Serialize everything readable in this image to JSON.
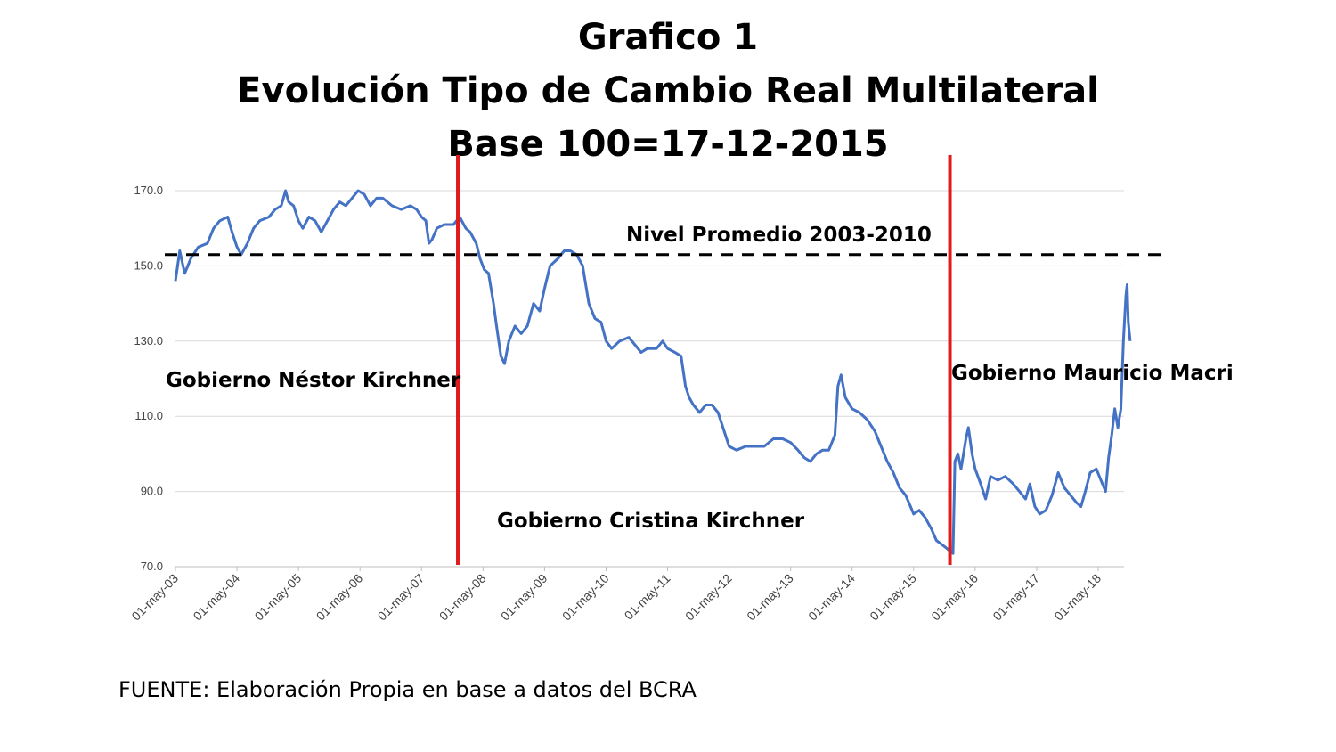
{
  "chart_data": {
    "type": "line",
    "title_lines": [
      "Grafico 1",
      "Evolución Tipo de Cambio Real Multilateral",
      "Base 100=17-12-2015"
    ],
    "xlabel": "",
    "ylabel": "",
    "ylim": [
      70,
      170
    ],
    "yticks": [
      "70.0",
      "90.0",
      "110.0",
      "130.0",
      "150.0",
      "170.0"
    ],
    "xlim": [
      2003.33,
      2018.75
    ],
    "xticks": [
      {
        "label": "01-may-03",
        "x": 2003.33
      },
      {
        "label": "01-may-04",
        "x": 2004.33
      },
      {
        "label": "01-may-05",
        "x": 2005.33
      },
      {
        "label": "01-may-06",
        "x": 2006.33
      },
      {
        "label": "01-may-07",
        "x": 2007.33
      },
      {
        "label": "01-may-08",
        "x": 2008.33
      },
      {
        "label": "01-may-09",
        "x": 2009.33
      },
      {
        "label": "01-may-10",
        "x": 2010.33
      },
      {
        "label": "01-may-11",
        "x": 2011.33
      },
      {
        "label": "01-may-12",
        "x": 2012.33
      },
      {
        "label": "01-may-13",
        "x": 2013.33
      },
      {
        "label": "01-may-14",
        "x": 2014.33
      },
      {
        "label": "01-may-15",
        "x": 2015.33
      },
      {
        "label": "01-may-16",
        "x": 2016.33
      },
      {
        "label": "01-may-17",
        "x": 2017.33
      },
      {
        "label": "01-may-18",
        "x": 2018.33
      }
    ],
    "grid": true,
    "series": [
      {
        "color": "#4472c4",
        "points": [
          [
            2003.33,
            146
          ],
          [
            2003.4,
            154
          ],
          [
            2003.48,
            148
          ],
          [
            2003.58,
            152
          ],
          [
            2003.7,
            155
          ],
          [
            2003.85,
            156
          ],
          [
            2003.95,
            160
          ],
          [
            2004.05,
            162
          ],
          [
            2004.18,
            163
          ],
          [
            2004.25,
            159
          ],
          [
            2004.33,
            155
          ],
          [
            2004.4,
            153
          ],
          [
            2004.5,
            156
          ],
          [
            2004.6,
            160
          ],
          [
            2004.7,
            162
          ],
          [
            2004.85,
            163
          ],
          [
            2004.95,
            165
          ],
          [
            2005.05,
            166
          ],
          [
            2005.12,
            170
          ],
          [
            2005.17,
            167
          ],
          [
            2005.25,
            166
          ],
          [
            2005.33,
            162
          ],
          [
            2005.4,
            160
          ],
          [
            2005.5,
            163
          ],
          [
            2005.6,
            162
          ],
          [
            2005.7,
            159
          ],
          [
            2005.8,
            162
          ],
          [
            2005.9,
            165
          ],
          [
            2006.0,
            167
          ],
          [
            2006.1,
            166
          ],
          [
            2006.2,
            168
          ],
          [
            2006.3,
            170
          ],
          [
            2006.4,
            169
          ],
          [
            2006.5,
            166
          ],
          [
            2006.6,
            168
          ],
          [
            2006.7,
            168
          ],
          [
            2006.85,
            166
          ],
          [
            2007.0,
            165
          ],
          [
            2007.15,
            166
          ],
          [
            2007.25,
            165
          ],
          [
            2007.33,
            163
          ],
          [
            2007.4,
            162
          ],
          [
            2007.45,
            156
          ],
          [
            2007.5,
            157
          ],
          [
            2007.58,
            160
          ],
          [
            2007.7,
            161
          ],
          [
            2007.85,
            161
          ],
          [
            2007.95,
            163
          ],
          [
            2008.05,
            160
          ],
          [
            2008.12,
            159
          ],
          [
            2008.22,
            156
          ],
          [
            2008.28,
            152
          ],
          [
            2008.35,
            149
          ],
          [
            2008.42,
            148
          ],
          [
            2008.5,
            140
          ],
          [
            2008.55,
            134
          ],
          [
            2008.62,
            126
          ],
          [
            2008.68,
            124
          ],
          [
            2008.75,
            130
          ],
          [
            2008.85,
            134
          ],
          [
            2008.95,
            132
          ],
          [
            2009.05,
            134
          ],
          [
            2009.15,
            140
          ],
          [
            2009.25,
            138
          ],
          [
            2009.33,
            144
          ],
          [
            2009.42,
            150
          ],
          [
            2009.55,
            152
          ],
          [
            2009.65,
            154
          ],
          [
            2009.75,
            154
          ],
          [
            2009.85,
            153
          ],
          [
            2009.95,
            150
          ],
          [
            2010.05,
            140
          ],
          [
            2010.15,
            136
          ],
          [
            2010.25,
            135
          ],
          [
            2010.33,
            130
          ],
          [
            2010.42,
            128
          ],
          [
            2010.55,
            130
          ],
          [
            2010.7,
            131
          ],
          [
            2010.8,
            129
          ],
          [
            2010.9,
            127
          ],
          [
            2011.0,
            128
          ],
          [
            2011.15,
            128
          ],
          [
            2011.25,
            130
          ],
          [
            2011.33,
            128
          ],
          [
            2011.45,
            127
          ],
          [
            2011.55,
            126
          ],
          [
            2011.62,
            118
          ],
          [
            2011.68,
            115
          ],
          [
            2011.75,
            113
          ],
          [
            2011.85,
            111
          ],
          [
            2011.95,
            113
          ],
          [
            2012.05,
            113
          ],
          [
            2012.15,
            111
          ],
          [
            2012.25,
            106
          ],
          [
            2012.33,
            102
          ],
          [
            2012.45,
            101
          ],
          [
            2012.6,
            102
          ],
          [
            2012.75,
            102
          ],
          [
            2012.9,
            102
          ],
          [
            2013.05,
            104
          ],
          [
            2013.2,
            104
          ],
          [
            2013.33,
            103
          ],
          [
            2013.45,
            101
          ],
          [
            2013.55,
            99
          ],
          [
            2013.65,
            98
          ],
          [
            2013.75,
            100
          ],
          [
            2013.85,
            101
          ],
          [
            2013.95,
            101
          ],
          [
            2014.05,
            105
          ],
          [
            2014.1,
            118
          ],
          [
            2014.15,
            121
          ],
          [
            2014.22,
            115
          ],
          [
            2014.33,
            112
          ],
          [
            2014.45,
            111
          ],
          [
            2014.58,
            109
          ],
          [
            2014.7,
            106
          ],
          [
            2014.8,
            102
          ],
          [
            2014.9,
            98
          ],
          [
            2015.0,
            95
          ],
          [
            2015.1,
            91
          ],
          [
            2015.2,
            89
          ],
          [
            2015.28,
            86
          ],
          [
            2015.33,
            84
          ],
          [
            2015.42,
            85
          ],
          [
            2015.52,
            83
          ],
          [
            2015.62,
            80
          ],
          [
            2015.7,
            77
          ],
          [
            2015.78,
            76
          ],
          [
            2015.86,
            75
          ],
          [
            2015.93,
            74
          ],
          [
            2015.97,
            73.5
          ],
          [
            2016.0,
            98
          ],
          [
            2016.05,
            100
          ],
          [
            2016.1,
            96
          ],
          [
            2016.18,
            104
          ],
          [
            2016.22,
            107
          ],
          [
            2016.28,
            100
          ],
          [
            2016.33,
            96
          ],
          [
            2016.42,
            92
          ],
          [
            2016.5,
            88
          ],
          [
            2016.58,
            94
          ],
          [
            2016.7,
            93
          ],
          [
            2016.82,
            94
          ],
          [
            2016.95,
            92
          ],
          [
            2017.05,
            90
          ],
          [
            2017.15,
            88
          ],
          [
            2017.22,
            92
          ],
          [
            2017.3,
            86
          ],
          [
            2017.38,
            84
          ],
          [
            2017.48,
            85
          ],
          [
            2017.58,
            89
          ],
          [
            2017.68,
            95
          ],
          [
            2017.78,
            91
          ],
          [
            2017.88,
            89
          ],
          [
            2017.98,
            87
          ],
          [
            2018.05,
            86
          ],
          [
            2018.12,
            90
          ],
          [
            2018.2,
            95
          ],
          [
            2018.3,
            96
          ],
          [
            2018.4,
            92
          ],
          [
            2018.45,
            90
          ],
          [
            2018.5,
            99
          ],
          [
            2018.55,
            105
          ],
          [
            2018.6,
            112
          ],
          [
            2018.65,
            107
          ],
          [
            2018.7,
            112
          ],
          [
            2018.74,
            130
          ],
          [
            2018.78,
            142
          ],
          [
            2018.8,
            145
          ],
          [
            2018.82,
            135
          ],
          [
            2018.85,
            130
          ]
        ]
      }
    ],
    "reference_line": {
      "label": "Nivel Promedio 2003-2010",
      "y": 153,
      "style": "dashed",
      "color": "#000000"
    },
    "vertical_lines": [
      {
        "x": 2007.92,
        "color": "#e31a1c"
      },
      {
        "x": 2015.92,
        "color": "#e31a1c"
      }
    ],
    "annotations": [
      {
        "text": "Gobierno Néstor Kirchner"
      },
      {
        "text": "Gobierno Cristina Kirchner"
      },
      {
        "text": "Gobierno Mauricio Macri"
      }
    ]
  },
  "source_note": "FUENTE: Elaboración Propia en base a datos del BCRA"
}
